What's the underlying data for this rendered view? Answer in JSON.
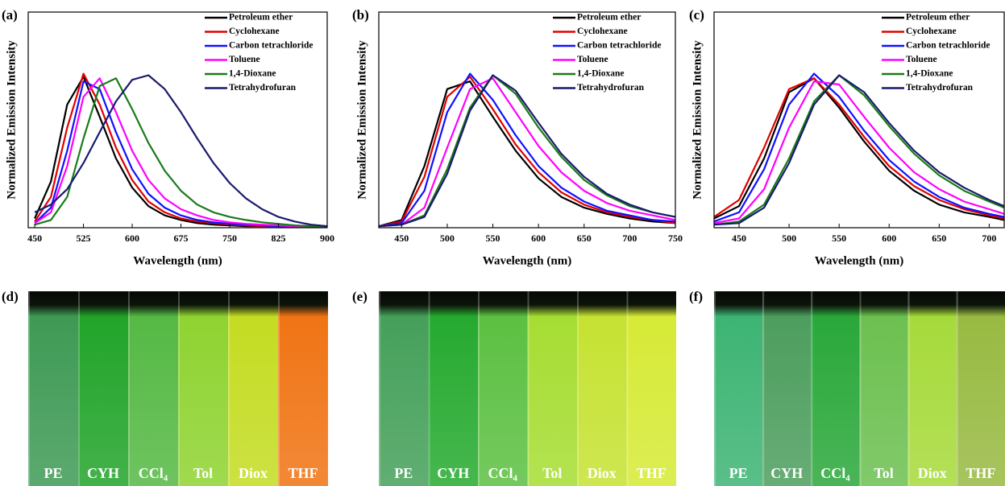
{
  "chart_data": [
    {
      "type": "line",
      "panel": "(a)",
      "xlabel": "Wavelength (nm)",
      "ylabel": "Normalized Emission Intensity",
      "xlim": [
        440,
        900
      ],
      "xticks": [
        450,
        525,
        600,
        675,
        750,
        825,
        900
      ],
      "ylim": [
        0,
        1.4
      ],
      "legend": "upper right",
      "x": [
        450,
        475,
        500,
        525,
        550,
        575,
        600,
        625,
        650,
        675,
        700,
        725,
        750,
        775,
        800,
        825,
        850,
        875,
        900
      ],
      "series": [
        {
          "name": "Petroleum ether",
          "color": "#000000",
          "values": [
            0.06,
            0.3,
            0.8,
            0.98,
            0.72,
            0.45,
            0.26,
            0.14,
            0.08,
            0.05,
            0.03,
            0.02,
            0.015,
            0.01,
            0.01,
            0.01,
            0.005,
            0.005,
            0
          ]
        },
        {
          "name": "Cyclohexane",
          "color": "#e00000",
          "values": [
            0.04,
            0.2,
            0.65,
            1,
            0.8,
            0.52,
            0.31,
            0.17,
            0.1,
            0.06,
            0.04,
            0.03,
            0.02,
            0.015,
            0.01,
            0.01,
            0.005,
            0.005,
            0
          ]
        },
        {
          "name": "Carbon tetrachloride",
          "color": "#1010ff",
          "values": [
            0.03,
            0.13,
            0.5,
            0.95,
            0.9,
            0.62,
            0.38,
            0.22,
            0.13,
            0.08,
            0.05,
            0.035,
            0.025,
            0.02,
            0.015,
            0.01,
            0.01,
            0.005,
            0
          ]
        },
        {
          "name": "Toluene",
          "color": "#ff00ff",
          "values": [
            0.03,
            0.1,
            0.4,
            0.85,
            0.97,
            0.75,
            0.5,
            0.31,
            0.19,
            0.12,
            0.08,
            0.05,
            0.035,
            0.025,
            0.02,
            0.015,
            0.01,
            0.005,
            0
          ]
        },
        {
          "name": "1,4-Dioxane",
          "color": "#1a7a1a",
          "values": [
            0.02,
            0.05,
            0.2,
            0.58,
            0.92,
            0.97,
            0.77,
            0.55,
            0.37,
            0.24,
            0.15,
            0.1,
            0.07,
            0.05,
            0.035,
            0.025,
            0.015,
            0.01,
            0
          ]
        },
        {
          "name": "Tetrahydrofuran",
          "color": "#1a1a6e",
          "values": [
            0.1,
            0.15,
            0.25,
            0.42,
            0.62,
            0.82,
            0.96,
            0.99,
            0.9,
            0.75,
            0.58,
            0.42,
            0.29,
            0.19,
            0.12,
            0.07,
            0.04,
            0.02,
            0.01
          ]
        }
      ]
    },
    {
      "type": "line",
      "panel": "(b)",
      "xlabel": "Wavelength (nm)",
      "ylabel": "Normalized Emission Intensity",
      "xlim": [
        425,
        750
      ],
      "xticks": [
        450,
        500,
        550,
        600,
        650,
        700,
        750
      ],
      "ylim": [
        0,
        1.4
      ],
      "legend": "upper right",
      "x": [
        425,
        450,
        475,
        500,
        525,
        550,
        575,
        600,
        625,
        650,
        675,
        700,
        725,
        750
      ],
      "series": [
        {
          "name": "Petroleum ether",
          "color": "#000000",
          "values": [
            0.01,
            0.05,
            0.4,
            0.9,
            0.95,
            0.72,
            0.5,
            0.32,
            0.2,
            0.13,
            0.09,
            0.06,
            0.04,
            0.03
          ]
        },
        {
          "name": "Cyclohexane",
          "color": "#e00000",
          "values": [
            0.01,
            0.04,
            0.33,
            0.85,
            0.98,
            0.77,
            0.54,
            0.36,
            0.23,
            0.15,
            0.1,
            0.07,
            0.05,
            0.03
          ]
        },
        {
          "name": "Carbon tetrachloride",
          "color": "#1010ff",
          "values": [
            0.01,
            0.03,
            0.24,
            0.75,
            1,
            0.83,
            0.6,
            0.4,
            0.26,
            0.17,
            0.11,
            0.08,
            0.05,
            0.04
          ]
        },
        {
          "name": "Toluene",
          "color": "#ff00ff",
          "values": [
            0.01,
            0.02,
            0.13,
            0.52,
            0.9,
            0.97,
            0.75,
            0.53,
            0.36,
            0.24,
            0.16,
            0.11,
            0.08,
            0.05
          ]
        },
        {
          "name": "1,4-Dioxane",
          "color": "#1a7a1a",
          "values": [
            0.01,
            0.02,
            0.08,
            0.38,
            0.78,
            0.99,
            0.87,
            0.65,
            0.46,
            0.31,
            0.21,
            0.14,
            0.1,
            0.07
          ]
        },
        {
          "name": "Tetrahydrofuran",
          "color": "#1a1a6e",
          "values": [
            0.01,
            0.02,
            0.07,
            0.35,
            0.76,
            0.99,
            0.89,
            0.68,
            0.48,
            0.33,
            0.22,
            0.15,
            0.1,
            0.07
          ]
        }
      ]
    },
    {
      "type": "line",
      "panel": "(c)",
      "xlabel": "Wavelength (nm)",
      "ylabel": "Normalized Emission Intensity",
      "xlim": [
        425,
        715
      ],
      "xticks": [
        450,
        500,
        550,
        600,
        650,
        700
      ],
      "ylim": [
        0,
        1.4
      ],
      "legend": "upper right",
      "x": [
        425,
        450,
        475,
        500,
        525,
        550,
        575,
        600,
        625,
        650,
        675,
        700,
        715
      ],
      "series": [
        {
          "name": "Petroleum ether",
          "color": "#000000",
          "values": [
            0.06,
            0.14,
            0.45,
            0.88,
            0.97,
            0.78,
            0.56,
            0.37,
            0.24,
            0.15,
            0.1,
            0.07,
            0.05
          ]
        },
        {
          "name": "Cyclohexane",
          "color": "#e00000",
          "values": [
            0.07,
            0.18,
            0.52,
            0.9,
            0.97,
            0.8,
            0.59,
            0.4,
            0.27,
            0.18,
            0.12,
            0.08,
            0.06
          ]
        },
        {
          "name": "Carbon tetrachloride",
          "color": "#1010ff",
          "values": [
            0.04,
            0.1,
            0.38,
            0.8,
            1,
            0.85,
            0.63,
            0.44,
            0.3,
            0.2,
            0.13,
            0.09,
            0.07
          ]
        },
        {
          "name": "Toluene",
          "color": "#ff00ff",
          "values": [
            0.03,
            0.06,
            0.25,
            0.65,
            0.95,
            0.93,
            0.72,
            0.52,
            0.36,
            0.25,
            0.17,
            0.12,
            0.09
          ]
        },
        {
          "name": "1,4-Dioxane",
          "color": "#1a7a1a",
          "values": [
            0.02,
            0.04,
            0.15,
            0.45,
            0.82,
            0.99,
            0.86,
            0.66,
            0.48,
            0.34,
            0.24,
            0.17,
            0.13
          ]
        },
        {
          "name": "Tetrahydrofuran",
          "color": "#1a1a6e",
          "values": [
            0.02,
            0.03,
            0.13,
            0.42,
            0.8,
            0.99,
            0.88,
            0.68,
            0.5,
            0.36,
            0.26,
            0.18,
            0.14
          ]
        }
      ]
    }
  ],
  "photos": [
    {
      "panel": "(d)",
      "vials": [
        "PE",
        "CYH",
        "CCl₄",
        "Tol",
        "Diox",
        "THF"
      ]
    },
    {
      "panel": "(e)",
      "vials": [
        "PE",
        "CYH",
        "CCl₄",
        "Tol",
        "Diox",
        "THF"
      ]
    },
    {
      "panel": "(f)",
      "vials": [
        "PE",
        "CYH",
        "CCl₄",
        "Tol",
        "Diox",
        "THF"
      ]
    }
  ]
}
